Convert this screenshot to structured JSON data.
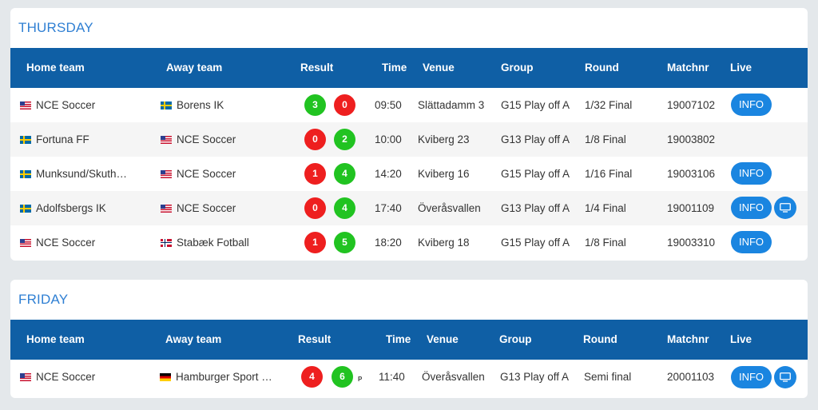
{
  "colors": {
    "title": "#2f7fd3",
    "header_bg": "#0f5fa5",
    "win": "#21c321",
    "loss": "#ee1f1f",
    "button": "#1a85e0"
  },
  "headers": {
    "home": "Home team",
    "away": "Away team",
    "result": "Result",
    "time": "Time",
    "venue": "Venue",
    "group": "Group",
    "round": "Round",
    "matchnr": "Matchnr",
    "live": "Live"
  },
  "info_label": "INFO",
  "sections": [
    {
      "day": "THURSDAY",
      "matches": [
        {
          "home": "NCE Soccer",
          "home_flag": "us-flag-icon",
          "away": "Borens IK",
          "away_flag": "sweden-flag-icon",
          "home_score": "3",
          "away_score": "0",
          "home_result": "win",
          "away_result": "loss",
          "time": "09:50",
          "venue": "Slättadamm 3",
          "group": "G15 Play off A",
          "round": "1/32 Final",
          "matchnr": "19007102",
          "has_info": true,
          "has_live": false
        },
        {
          "home": "Fortuna FF",
          "home_flag": "sweden-flag-icon",
          "away": "NCE Soccer",
          "away_flag": "us-flag-icon",
          "home_score": "0",
          "away_score": "2",
          "home_result": "loss",
          "away_result": "win",
          "time": "10:00",
          "venue": "Kviberg 23",
          "group": "G13 Play off A",
          "round": "1/8 Final",
          "matchnr": "19003802",
          "has_info": false,
          "has_live": false
        },
        {
          "home": "Munksund/Skuth…",
          "home_flag": "sweden-flag-icon",
          "away": "NCE Soccer",
          "away_flag": "us-flag-icon",
          "home_score": "1",
          "away_score": "4",
          "home_result": "loss",
          "away_result": "win",
          "time": "14:20",
          "venue": "Kviberg 16",
          "group": "G15 Play off A",
          "round": "1/16 Final",
          "matchnr": "19003106",
          "has_info": true,
          "has_live": false
        },
        {
          "home": "Adolfsbergs IK",
          "home_flag": "sweden-flag-icon",
          "away": "NCE Soccer",
          "away_flag": "us-flag-icon",
          "home_score": "0",
          "away_score": "4",
          "home_result": "loss",
          "away_result": "win",
          "time": "17:40",
          "venue": "Överåsvallen",
          "group": "G13 Play off A",
          "round": "1/4 Final",
          "matchnr": "19001109",
          "has_info": true,
          "has_live": true
        },
        {
          "home": "NCE Soccer",
          "home_flag": "us-flag-icon",
          "away": "Stabæk Fotball",
          "away_flag": "norway-flag-icon",
          "home_score": "1",
          "away_score": "5",
          "home_result": "loss",
          "away_result": "win",
          "time": "18:20",
          "venue": "Kviberg 18",
          "group": "G15 Play off A",
          "round": "1/8 Final",
          "matchnr": "19003310",
          "has_info": true,
          "has_live": false
        }
      ]
    },
    {
      "day": "FRIDAY",
      "matches": [
        {
          "home": "NCE Soccer",
          "home_flag": "us-flag-icon",
          "away": "Hamburger Sport …",
          "away_flag": "germany-flag-icon",
          "home_score": "4",
          "away_score": "6",
          "home_result": "loss",
          "away_result": "win",
          "penalty_mark": "P",
          "time": "11:40",
          "venue": "Överåsvallen",
          "group": "G13 Play off A",
          "round": "Semi final",
          "matchnr": "20001103",
          "has_info": true,
          "has_live": true
        }
      ]
    }
  ]
}
